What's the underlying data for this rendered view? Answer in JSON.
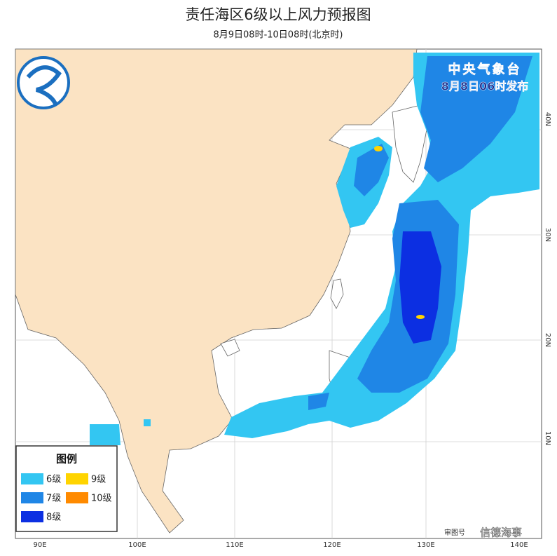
{
  "header": {
    "title": "责任海区6级以上风力预报图",
    "subtitle": "8月9日08时-10日08时(北京时)"
  },
  "issuer": {
    "name": "中央气象台",
    "time": "8月8日06时发布"
  },
  "legend": {
    "title": "图例",
    "items": [
      {
        "label": "6级",
        "color": "#33c6f2"
      },
      {
        "label": "9级",
        "color": "#ffd400"
      },
      {
        "label": "7级",
        "color": "#1f86e6"
      },
      {
        "label": "10级",
        "color": "#ff8a00"
      },
      {
        "label": "8级",
        "color": "#0c2fe2"
      }
    ]
  },
  "longitudes": [
    "90E",
    "100E",
    "110E",
    "120E",
    "130E",
    "140E"
  ],
  "latitudes": [
    "40N",
    "30N",
    "20N",
    "10N"
  ],
  "footer": {
    "map_number": "审图号",
    "watermark": "信德海事"
  }
}
